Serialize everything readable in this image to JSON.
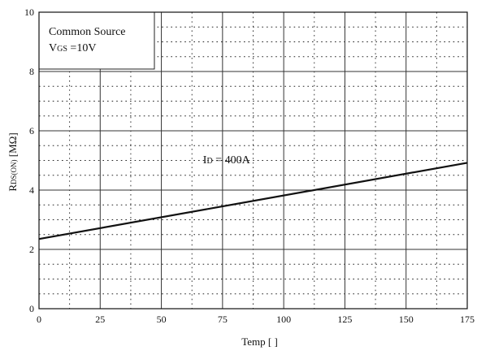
{
  "chart_data": {
    "type": "line",
    "xlabel": "Temp [   ]",
    "ylabel_main": "R",
    "ylabel_sub": "DS(ON)",
    "ylabel_unit": " [MΩ]",
    "xlim": [
      0,
      175
    ],
    "ylim": [
      0,
      10
    ],
    "x_ticks": [
      0,
      25,
      50,
      75,
      100,
      125,
      150,
      175
    ],
    "y_ticks": [
      0,
      2,
      4,
      6,
      8,
      10
    ],
    "x_tick_labels": [
      "0",
      "25",
      "50",
      "75",
      "100",
      "125",
      "150",
      "175"
    ],
    "y_tick_labels": [
      "0",
      "2",
      "4",
      "6",
      "8",
      "10"
    ],
    "x_minor_step": 12.5,
    "y_minor_step": 0.5,
    "grid": true,
    "legend_box": {
      "placement": "top-left",
      "line1": "Common Source",
      "line2_main": "V",
      "line2_sub": "GS",
      "line2_rest": " =10V"
    },
    "annotation": {
      "main": "I",
      "sub": "D",
      "rest": " = 400A",
      "x": 67,
      "y": 4.9
    },
    "series": [
      {
        "x": [
          0,
          175
        ],
        "y": [
          2.35,
          4.92
        ]
      }
    ]
  }
}
